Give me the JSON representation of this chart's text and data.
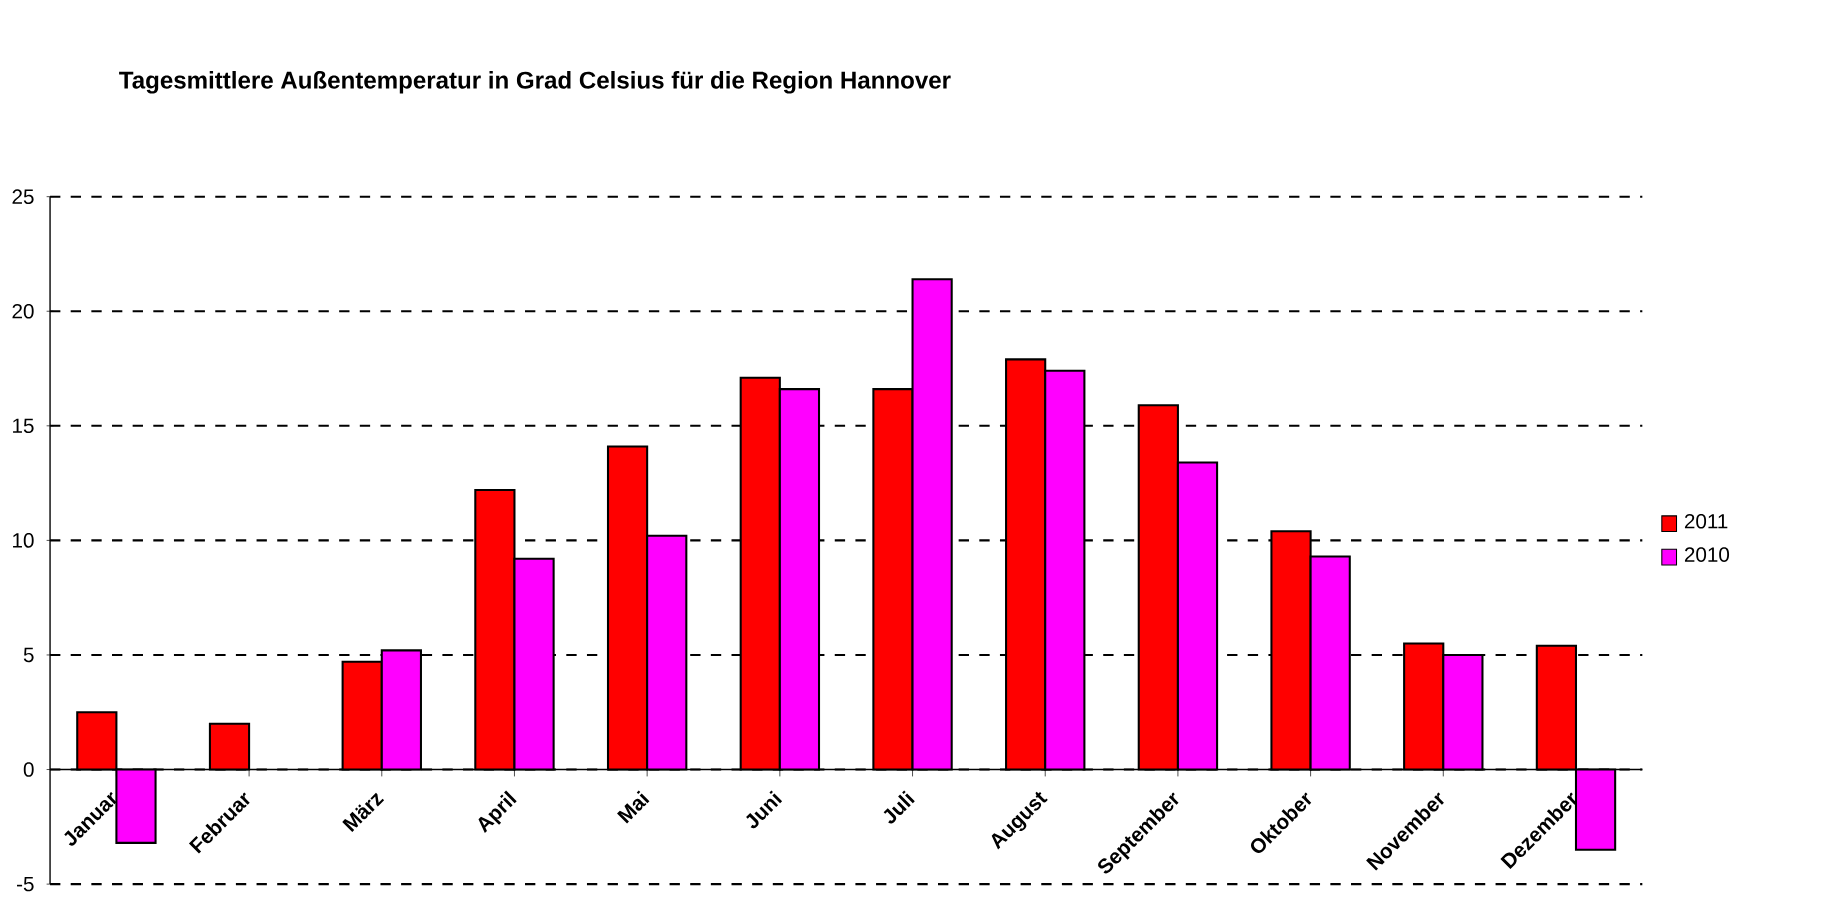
{
  "chart_data": {
    "type": "bar",
    "title": "Tagesmittlere Außentemperatur in Grad Celsius für die Region Hannover",
    "categories": [
      "Januar",
      "Februar",
      "März",
      "April",
      "Mai",
      "Juni",
      "Juli",
      "August",
      "September",
      "Oktober",
      "November",
      "Dezember"
    ],
    "series": [
      {
        "name": "2011",
        "color": "#ff0000",
        "values": [
          2.5,
          2.0,
          4.7,
          12.2,
          14.1,
          17.1,
          16.6,
          17.9,
          15.9,
          10.4,
          5.5,
          5.4
        ]
      },
      {
        "name": "2010",
        "color": "#ff00ff",
        "values": [
          -3.2,
          null,
          5.2,
          9.2,
          10.2,
          16.6,
          21.4,
          17.4,
          13.4,
          9.3,
          5.0,
          -3.5
        ]
      }
    ],
    "ylim": [
      -5,
      25
    ],
    "yticks": [
      -5,
      0,
      5,
      10,
      15,
      20,
      25
    ],
    "grid": "y",
    "legend": "right"
  }
}
